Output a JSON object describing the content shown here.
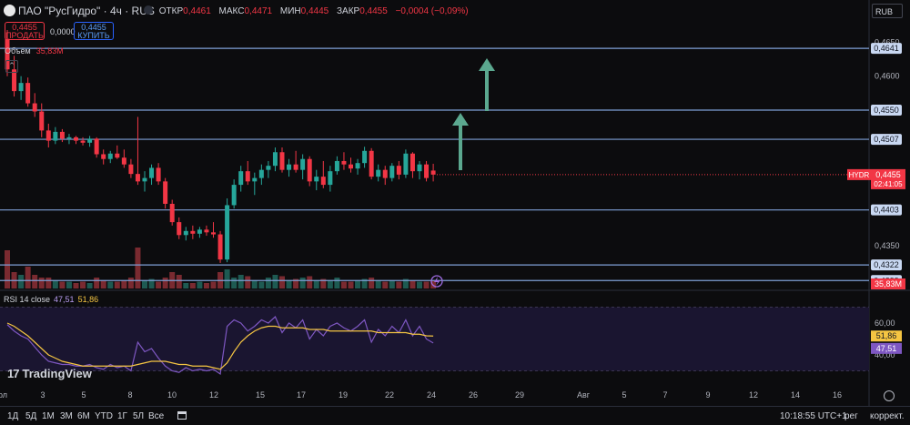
{
  "header": {
    "symbol_title": "ПАО \"РусГидро\" · 4ч · RUS",
    "ohlc": {
      "open_label": "ОТКР",
      "open": "0,4461",
      "high_label": "МАКС",
      "high": "0,4471",
      "low_label": "МИН",
      "low": "0,4445",
      "close_label": "ЗАКР",
      "close": "0,4455",
      "change": "−0,0004 (−0,09%)"
    },
    "currency": "RUB",
    "sell_price": "0,4455",
    "sell_label": "ПРОДАТЬ",
    "buy_price": "0,4455",
    "buy_label": "КУПИТЬ",
    "spread": "0,0000",
    "volume_label": "Объём",
    "volume_value": "35,83M",
    "collapse_glyph": "⌃"
  },
  "price_axis": {
    "ticks": [
      "0,4650",
      "0,4600",
      "0,4350"
    ]
  },
  "levels": [
    "0,4641",
    "0,4550",
    "0,4507",
    "0,4403",
    "0,4322",
    "0,4299"
  ],
  "current": {
    "ticker": "HYDR",
    "price": "0,4455",
    "countdown": "02:41:05",
    "volume": "35,83M"
  },
  "rsi": {
    "label": "RSI 14 close",
    "value": "47,51",
    "ma_value": "51,86",
    "ticks": [
      "60,00",
      "40,00"
    ]
  },
  "time_axis": {
    "labels": [
      "ол",
      "3",
      "5",
      "8",
      "10",
      "12",
      "15",
      "17",
      "19",
      "22",
      "24",
      "26",
      "29",
      "Авг",
      "5",
      "7",
      "9",
      "12",
      "14",
      "16"
    ]
  },
  "bottom_bar": {
    "ranges": [
      "1Д",
      "5Д",
      "1М",
      "3М",
      "6М",
      "YTD",
      "1Г",
      "5Л",
      "Все"
    ],
    "clock": "10:18:55 UTC+1",
    "scale_option": "рег",
    "adjust_option": "коррект."
  },
  "branding": {
    "logo_text": "TradingView",
    "logo_mark": "17"
  },
  "colors": {
    "up": "#26a69a",
    "down": "#f23645",
    "level_line": "#7e9fd6",
    "arrow": "#5ba88f",
    "rsi_line": "#7e57c2",
    "rsi_ma": "#f5c542",
    "rsi_band": "#1a1530"
  },
  "chart_data": {
    "type": "candlestick",
    "timeframe": "4ч",
    "ylim": [
      0.429,
      0.468
    ],
    "horizontal_levels": [
      0.4641,
      0.455,
      0.4507,
      0.4403,
      0.4322,
      0.4299
    ],
    "candles": [
      [
        0.4655,
        0.4668,
        0.46,
        0.461
      ],
      [
        0.461,
        0.463,
        0.457,
        0.4578
      ],
      [
        0.4578,
        0.46,
        0.4565,
        0.459
      ],
      [
        0.459,
        0.4598,
        0.4555,
        0.456
      ],
      [
        0.456,
        0.4575,
        0.454,
        0.4548
      ],
      [
        0.4548,
        0.456,
        0.451,
        0.452
      ],
      [
        0.452,
        0.453,
        0.4495,
        0.4505
      ],
      [
        0.4505,
        0.4525,
        0.45,
        0.4518
      ],
      [
        0.4518,
        0.4522,
        0.4503,
        0.4508
      ],
      [
        0.4508,
        0.4515,
        0.45,
        0.451
      ],
      [
        0.451,
        0.4512,
        0.45,
        0.4505
      ],
      [
        0.4505,
        0.451,
        0.4498,
        0.4502
      ],
      [
        0.4502,
        0.4512,
        0.4496,
        0.4508
      ],
      [
        0.4508,
        0.451,
        0.448,
        0.4485
      ],
      [
        0.4485,
        0.4492,
        0.447,
        0.4478
      ],
      [
        0.4478,
        0.449,
        0.4472,
        0.4486
      ],
      [
        0.4486,
        0.4498,
        0.4478,
        0.448
      ],
      [
        0.448,
        0.4492,
        0.4465,
        0.447
      ],
      [
        0.447,
        0.4478,
        0.445,
        0.4456
      ],
      [
        0.4456,
        0.454,
        0.444,
        0.4445
      ],
      [
        0.4445,
        0.446,
        0.443,
        0.445
      ],
      [
        0.445,
        0.447,
        0.444,
        0.4465
      ],
      [
        0.4465,
        0.4472,
        0.444,
        0.4445
      ],
      [
        0.4445,
        0.445,
        0.4405,
        0.4412
      ],
      [
        0.4412,
        0.4418,
        0.438,
        0.4385
      ],
      [
        0.4385,
        0.4392,
        0.436,
        0.4366
      ],
      [
        0.4366,
        0.4378,
        0.4358,
        0.4372
      ],
      [
        0.4372,
        0.438,
        0.436,
        0.4368
      ],
      [
        0.4368,
        0.4378,
        0.4362,
        0.4374
      ],
      [
        0.4374,
        0.438,
        0.4365,
        0.437
      ],
      [
        0.437,
        0.4385,
        0.4362,
        0.4367
      ],
      [
        0.4367,
        0.4372,
        0.4325,
        0.433
      ],
      [
        0.433,
        0.442,
        0.4326,
        0.441
      ],
      [
        0.441,
        0.4448,
        0.4405,
        0.444
      ],
      [
        0.444,
        0.4468,
        0.443,
        0.446
      ],
      [
        0.446,
        0.4475,
        0.444,
        0.4445
      ],
      [
        0.4445,
        0.4458,
        0.4425,
        0.445
      ],
      [
        0.445,
        0.447,
        0.444,
        0.4462
      ],
      [
        0.4462,
        0.4475,
        0.445,
        0.4468
      ],
      [
        0.4468,
        0.4495,
        0.446,
        0.4488
      ],
      [
        0.4488,
        0.4495,
        0.4458,
        0.4462
      ],
      [
        0.4462,
        0.4478,
        0.4452,
        0.447
      ],
      [
        0.447,
        0.449,
        0.4458,
        0.4462
      ],
      [
        0.4462,
        0.4485,
        0.4448,
        0.4478
      ],
      [
        0.4478,
        0.4482,
        0.4438,
        0.4445
      ],
      [
        0.4445,
        0.4462,
        0.4432,
        0.4452
      ],
      [
        0.4452,
        0.4475,
        0.4435,
        0.444
      ],
      [
        0.444,
        0.4468,
        0.443,
        0.446
      ],
      [
        0.446,
        0.4482,
        0.4455,
        0.4475
      ],
      [
        0.4475,
        0.4488,
        0.4462,
        0.447
      ],
      [
        0.447,
        0.448,
        0.4458,
        0.4464
      ],
      [
        0.4464,
        0.4478,
        0.4455,
        0.4472
      ],
      [
        0.4472,
        0.4496,
        0.4465,
        0.449
      ],
      [
        0.449,
        0.4494,
        0.4448,
        0.4452
      ],
      [
        0.4452,
        0.447,
        0.4445,
        0.4462
      ],
      [
        0.4462,
        0.4468,
        0.444,
        0.445
      ],
      [
        0.445,
        0.4472,
        0.4445,
        0.4468
      ],
      [
        0.4468,
        0.4475,
        0.4448,
        0.4455
      ],
      [
        0.4455,
        0.4492,
        0.445,
        0.4486
      ],
      [
        0.4486,
        0.4488,
        0.445,
        0.446
      ],
      [
        0.446,
        0.4475,
        0.4448,
        0.447
      ],
      [
        0.447,
        0.4475,
        0.4445,
        0.445
      ],
      [
        0.4461,
        0.4471,
        0.4445,
        0.4455
      ]
    ],
    "volume": [
      28,
      12,
      10,
      16,
      10,
      8,
      8,
      6,
      5,
      5,
      4,
      5,
      4,
      8,
      6,
      5,
      5,
      6,
      8,
      30,
      6,
      7,
      5,
      8,
      12,
      10,
      4,
      4,
      5,
      4,
      5,
      12,
      14,
      8,
      10,
      9,
      6,
      5,
      8,
      10,
      9,
      6,
      7,
      8,
      9,
      6,
      7,
      6,
      8,
      5,
      5,
      6,
      7,
      8,
      6,
      5,
      6,
      5,
      7,
      6,
      5,
      5,
      6
    ],
    "rsi": [
      59,
      55,
      52,
      50,
      45,
      40,
      36,
      35,
      34,
      34,
      33,
      33,
      34,
      32,
      31,
      34,
      32,
      33,
      30,
      48,
      42,
      44,
      38,
      33,
      30,
      29,
      32,
      30,
      31,
      30,
      31,
      28,
      58,
      62,
      60,
      55,
      58,
      62,
      60,
      64,
      54,
      60,
      57,
      62,
      50,
      56,
      52,
      58,
      60,
      57,
      55,
      58,
      62,
      48,
      56,
      52,
      58,
      54,
      62,
      52,
      58,
      50,
      47.51
    ],
    "rsi_ma": [
      60,
      58,
      55,
      52,
      48,
      44,
      40,
      38,
      36,
      35,
      34,
      33,
      33,
      33,
      33,
      33,
      33,
      33,
      33,
      34,
      35,
      36,
      36,
      36,
      35,
      34,
      34,
      33,
      33,
      33,
      32,
      31,
      35,
      42,
      48,
      52,
      55,
      57,
      58,
      58,
      57,
      57,
      57,
      57,
      56,
      56,
      56,
      55,
      55,
      55,
      55,
      55,
      55,
      55,
      54,
      54,
      54,
      54,
      54,
      53,
      53,
      52,
      51.86
    ],
    "rsi_ylim": [
      20,
      80
    ]
  }
}
